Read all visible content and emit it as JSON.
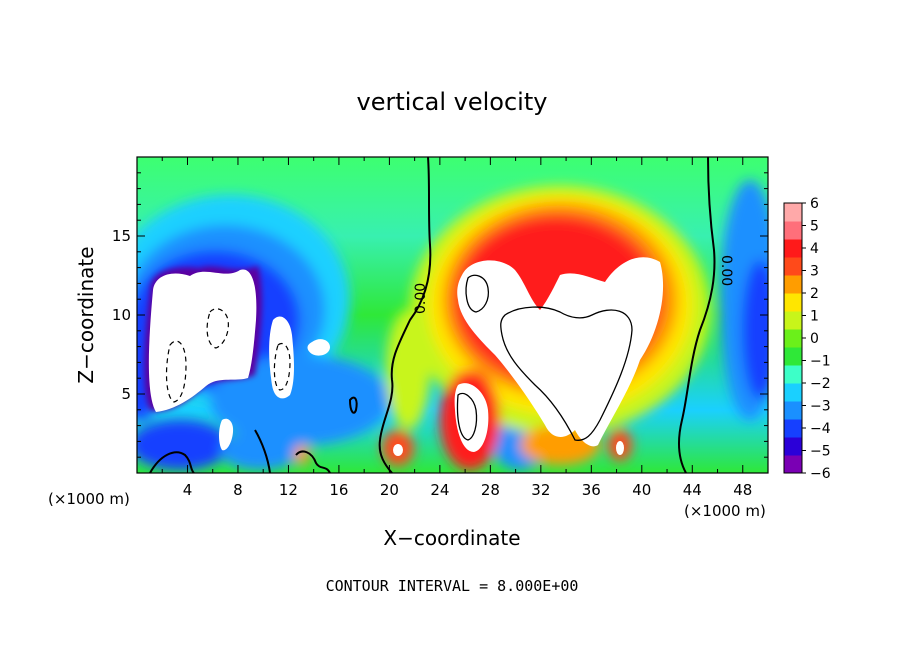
{
  "chart_data": {
    "type": "heatmap",
    "title": "vertical velocity",
    "xlabel": "X−coordinate",
    "ylabel": "Z−coordinate",
    "x_unit": "(×1000 m)",
    "xlim": [
      0,
      50
    ],
    "ylim": [
      0,
      20
    ],
    "x_ticks": [
      "4",
      "8",
      "12",
      "16",
      "20",
      "24",
      "28",
      "32",
      "36",
      "40",
      "44",
      "48"
    ],
    "y_ticks": [
      "5",
      "10",
      "15"
    ],
    "colorbar": {
      "ticks": [
        "6",
        "5",
        "4",
        "3",
        "2",
        "1",
        "0",
        "−1",
        "−2",
        "−3",
        "−4",
        "−5",
        "−6"
      ],
      "range": [
        -6,
        6
      ],
      "colors": [
        "#7a00b4",
        "#2b00d8",
        "#1640ff",
        "#1a90ff",
        "#1ad0ff",
        "#3dffc8",
        "#2fe838",
        "#6bf01a",
        "#c8f51a",
        "#ffe600",
        "#ff9d00",
        "#ff4a1a",
        "#ff1a1a",
        "#ff6f7a",
        "#ffa9a9"
      ]
    },
    "contour_interval": "CONTOUR INTERVAL = 8.000E+00",
    "contour_labels": [
      "0.00",
      "0.00"
    ],
    "features": [
      {
        "kind": "updraft",
        "x_center": 33,
        "z_center": 10,
        "peak": "> 6"
      },
      {
        "kind": "downdraft",
        "x_center": 7,
        "z_center": 8,
        "peak": "< -6"
      }
    ]
  },
  "footer_text": "CONTOUR INTERVAL = 8.000E+00"
}
